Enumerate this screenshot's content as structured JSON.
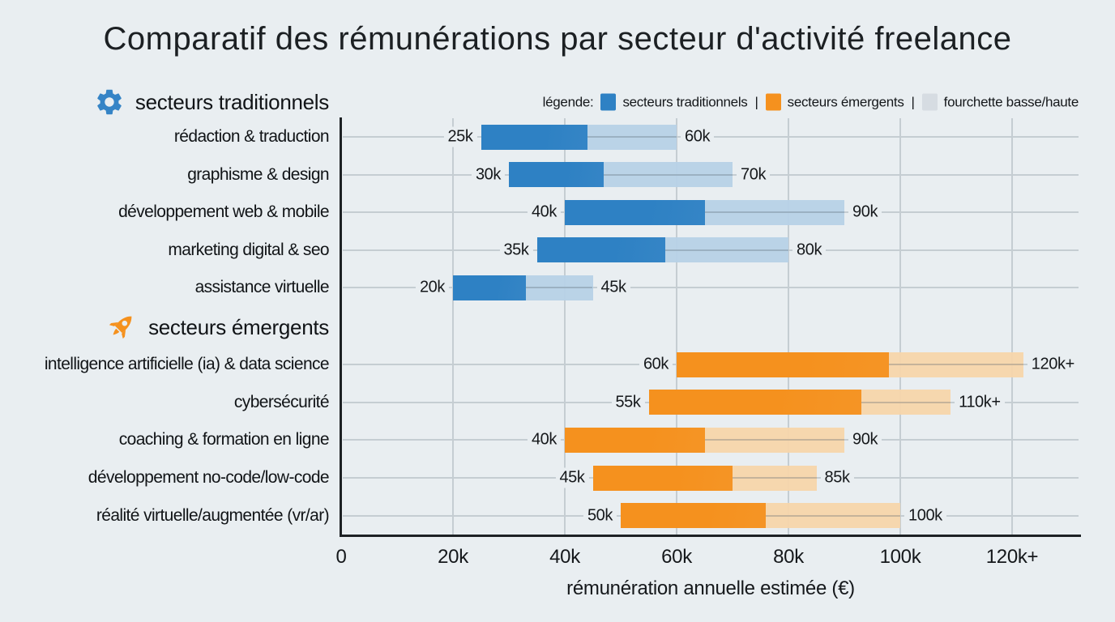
{
  "title": "Comparatif des rémunérations par secteur d'activité freelance",
  "legend": {
    "prefix": "légende:",
    "separator": "|",
    "items": [
      {
        "label": "secteurs traditionnels",
        "color": "#2e81c4"
      },
      {
        "label": "secteurs émergents",
        "color": "#f5911e"
      },
      {
        "label": "fourchette basse/haute",
        "color": "#d6dce2"
      }
    ]
  },
  "sections": [
    {
      "label": "secteurs traditionnels",
      "icon": "gear-icon",
      "icon_color": "#3584c6"
    },
    {
      "label": "secteurs émergents",
      "icon": "rocket-icon",
      "icon_color": "#f5911e"
    }
  ],
  "chart_data": {
    "type": "bar",
    "orientation": "horizontal",
    "title": "Comparatif des rémunérations par secteur d'activité freelance",
    "xlabel": "rémunération annuelle estimée (€)",
    "xlim_k": [
      0,
      131.5
    ],
    "grid": true,
    "legend_position": "top-right",
    "x_ticks": [
      {
        "k": 0,
        "label": "0"
      },
      {
        "k": 20,
        "label": "20k"
      },
      {
        "k": 40,
        "label": "40k"
      },
      {
        "k": 60,
        "label": "60k"
      },
      {
        "k": 80,
        "label": "80k"
      },
      {
        "k": 100,
        "label": "100k"
      },
      {
        "k": 120,
        "label": "120k+"
      }
    ],
    "groups": [
      {
        "name": "secteurs traditionnels",
        "bar_color": "#2e81c4",
        "range_color": "#b7d1e6",
        "rows": [
          {
            "label": "rédaction & traduction",
            "low_k": 25,
            "solid_end_k": 44,
            "high_k": 60,
            "low_label": "25k",
            "high_label": "60k"
          },
          {
            "label": "graphisme & design",
            "low_k": 30,
            "solid_end_k": 47,
            "high_k": 70,
            "low_label": "30k",
            "high_label": "70k"
          },
          {
            "label": "développement web & mobile",
            "low_k": 40,
            "solid_end_k": 65,
            "high_k": 90,
            "low_label": "40k",
            "high_label": "90k"
          },
          {
            "label": "marketing digital & seo",
            "low_k": 35,
            "solid_end_k": 58,
            "high_k": 80,
            "low_label": "35k",
            "high_label": "80k"
          },
          {
            "label": "assistance virtuelle",
            "low_k": 20,
            "solid_end_k": 33,
            "high_k": 45,
            "low_label": "20k",
            "high_label": "45k"
          }
        ]
      },
      {
        "name": "secteurs émergents",
        "bar_color": "#f5911e",
        "range_color": "#f6d5ab",
        "rows": [
          {
            "label": "intelligence artificielle (ia) & data science",
            "low_k": 60,
            "solid_end_k": 98,
            "high_k": 122,
            "low_label": "60k",
            "high_label": "120k+"
          },
          {
            "label": "cybersécurité",
            "low_k": 55,
            "solid_end_k": 93,
            "high_k": 109,
            "low_label": "55k",
            "high_label": "110k+"
          },
          {
            "label": "coaching & formation en ligne",
            "low_k": 40,
            "solid_end_k": 65,
            "high_k": 90,
            "low_label": "40k",
            "high_label": "90k"
          },
          {
            "label": "développement no-code/low-code",
            "low_k": 45,
            "solid_end_k": 70,
            "high_k": 85,
            "low_label": "45k",
            "high_label": "85k"
          },
          {
            "label": "réalité virtuelle/augmentée (vr/ar)",
            "low_k": 50,
            "solid_end_k": 76,
            "high_k": 100,
            "low_label": "50k",
            "high_label": "100k"
          }
        ]
      }
    ]
  },
  "colors": {
    "background": "#e9eef1",
    "gridline": "#c5cdd2",
    "axis": "#1d2124",
    "text": "#15181b"
  }
}
